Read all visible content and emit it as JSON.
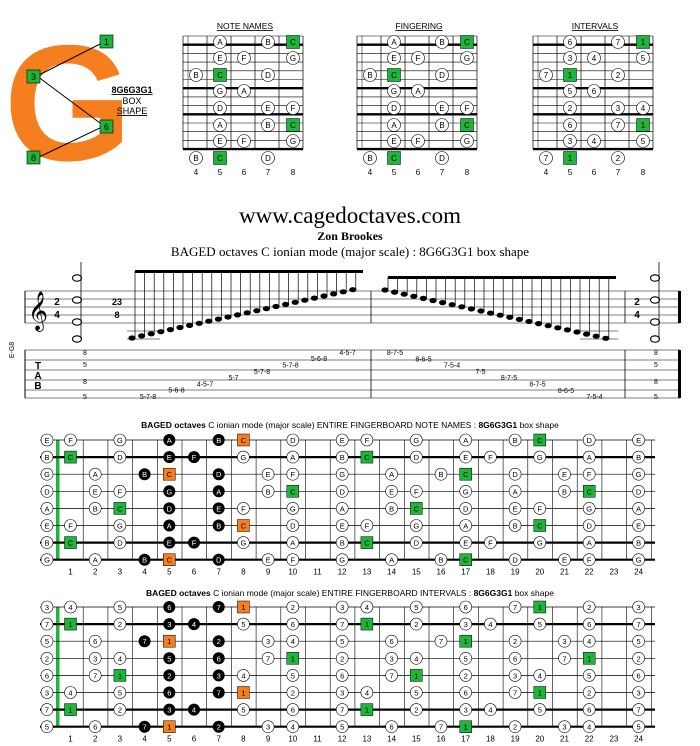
{
  "logo": {
    "letter": "G",
    "code": "8G6G3G1",
    "box": "BOX",
    "shape": "SHAPE",
    "markers": [
      "1",
      "3",
      "6",
      "8"
    ],
    "colors": {
      "letter": "#f57f1e",
      "marker": "#1db53a"
    }
  },
  "mini_diagrams": {
    "titles": [
      "NOTE NAMES",
      "FINGERING",
      "INTERVALS"
    ],
    "fret_numbers": [
      "4",
      "5",
      "6",
      "7",
      "8"
    ],
    "note_rows": [
      [
        [
          "A",
          0
        ],
        [
          "B",
          0
        ],
        [
          "C",
          1
        ]
      ],
      [
        [
          "E",
          0
        ],
        [
          "F",
          0
        ],
        [
          "G",
          0
        ]
      ],
      [
        [
          "B",
          0
        ],
        [
          "C",
          1
        ],
        [
          "D",
          0
        ]
      ],
      [
        [
          "G",
          0
        ],
        [
          "A",
          0
        ]
      ],
      [
        [
          "D",
          0
        ],
        [
          "E",
          0
        ],
        [
          "F",
          0
        ]
      ],
      [
        [
          "A",
          0
        ],
        [
          "B",
          0
        ],
        [
          "C",
          1
        ]
      ],
      [
        [
          "E",
          0
        ],
        [
          "F",
          0
        ],
        [
          "G",
          0
        ]
      ],
      [
        [
          "B",
          0
        ],
        [
          "C",
          1
        ],
        [
          "D",
          0
        ]
      ]
    ],
    "interval_rows": [
      [
        [
          "6",
          0
        ],
        [
          "7",
          0
        ],
        [
          "1",
          1
        ]
      ],
      [
        [
          "3",
          0
        ],
        [
          "4",
          0
        ],
        [
          "5",
          0
        ]
      ],
      [
        [
          "7",
          0
        ],
        [
          "1",
          1
        ],
        [
          "2",
          0
        ]
      ],
      [
        [
          "5",
          0
        ],
        [
          "6",
          0
        ]
      ],
      [
        [
          "2",
          0
        ],
        [
          "3",
          0
        ],
        [
          "4",
          0
        ]
      ],
      [
        [
          "6",
          0
        ],
        [
          "7",
          0
        ],
        [
          "1",
          1
        ]
      ],
      [
        [
          "3",
          0
        ],
        [
          "4",
          0
        ],
        [
          "5",
          0
        ]
      ],
      [
        [
          "7",
          0
        ],
        [
          "1",
          1
        ],
        [
          "2",
          0
        ]
      ]
    ]
  },
  "header": {
    "site": "www.cagedoctaves.com",
    "author": "Zon Brookes",
    "subtitle": "BAGED octaves C ionian mode (major scale) : 8G6G3G1 box shape"
  },
  "notation": {
    "tuning": "E-G8",
    "time_sig_top": "2",
    "time_sig_bottom": "4",
    "mid_time_top": "23",
    "mid_time_bottom": "8",
    "tab_label": [
      "T",
      "A",
      "B"
    ],
    "chord_frets": [
      "8",
      "5",
      "8",
      "5"
    ],
    "ascending": "4-5-7    5-6-8    5-7-8    5-7-8    4-5-7    5-6-8    5-7-8",
    "descending": "8-7-5    8-6-5    7-5-4    7-5    8-7-5    8-7-5    8-6-5    7-5-4",
    "tab_asc_rows": [
      "5-7-8",
      "5-6-8",
      "4-5-7",
      "5-7",
      "5-7-8",
      "5-7-8",
      "5-6-8",
      "4-5-7"
    ],
    "tab_desc_rows": [
      "8-7-5",
      "8-6-5",
      "7-5-4",
      "7-5",
      "8-7-5",
      "8-7-5",
      "8-6-5",
      "7-5-4"
    ]
  },
  "board_notes": {
    "title_bold": "BAGED octaves",
    "title_rest": "C ionian mode (major scale) ENTIRE FINGERBOARD NOTE NAMES :",
    "title_code": "8G6G3G1",
    "title_tail": "box shape",
    "open_strings": [
      "E",
      "B",
      "G",
      "D",
      "A",
      "E",
      "B",
      "G"
    ],
    "tonic": "C"
  },
  "board_intervals": {
    "title_bold": "BAGED octaves",
    "title_rest": "C ionian mode (major scale) ENTIRE FINGERBOARD INTERVALS :",
    "title_code": "8G6G3G1",
    "title_tail": "box shape",
    "open_strings": [
      "3",
      "7",
      "5",
      "2",
      "6",
      "3",
      "7",
      "5"
    ],
    "tonic": "1"
  },
  "fret_numbers": [
    "1",
    "2",
    "3",
    "4",
    "5",
    "6",
    "7",
    "8",
    "9",
    "10",
    "11",
    "12",
    "13",
    "14",
    "15",
    "16",
    "17",
    "18",
    "19",
    "20",
    "21",
    "22",
    "23",
    "24"
  ],
  "colors": {
    "green": "#1db53a",
    "orange": "#f57f1e",
    "black": "#000000",
    "white": "#ffffff"
  }
}
